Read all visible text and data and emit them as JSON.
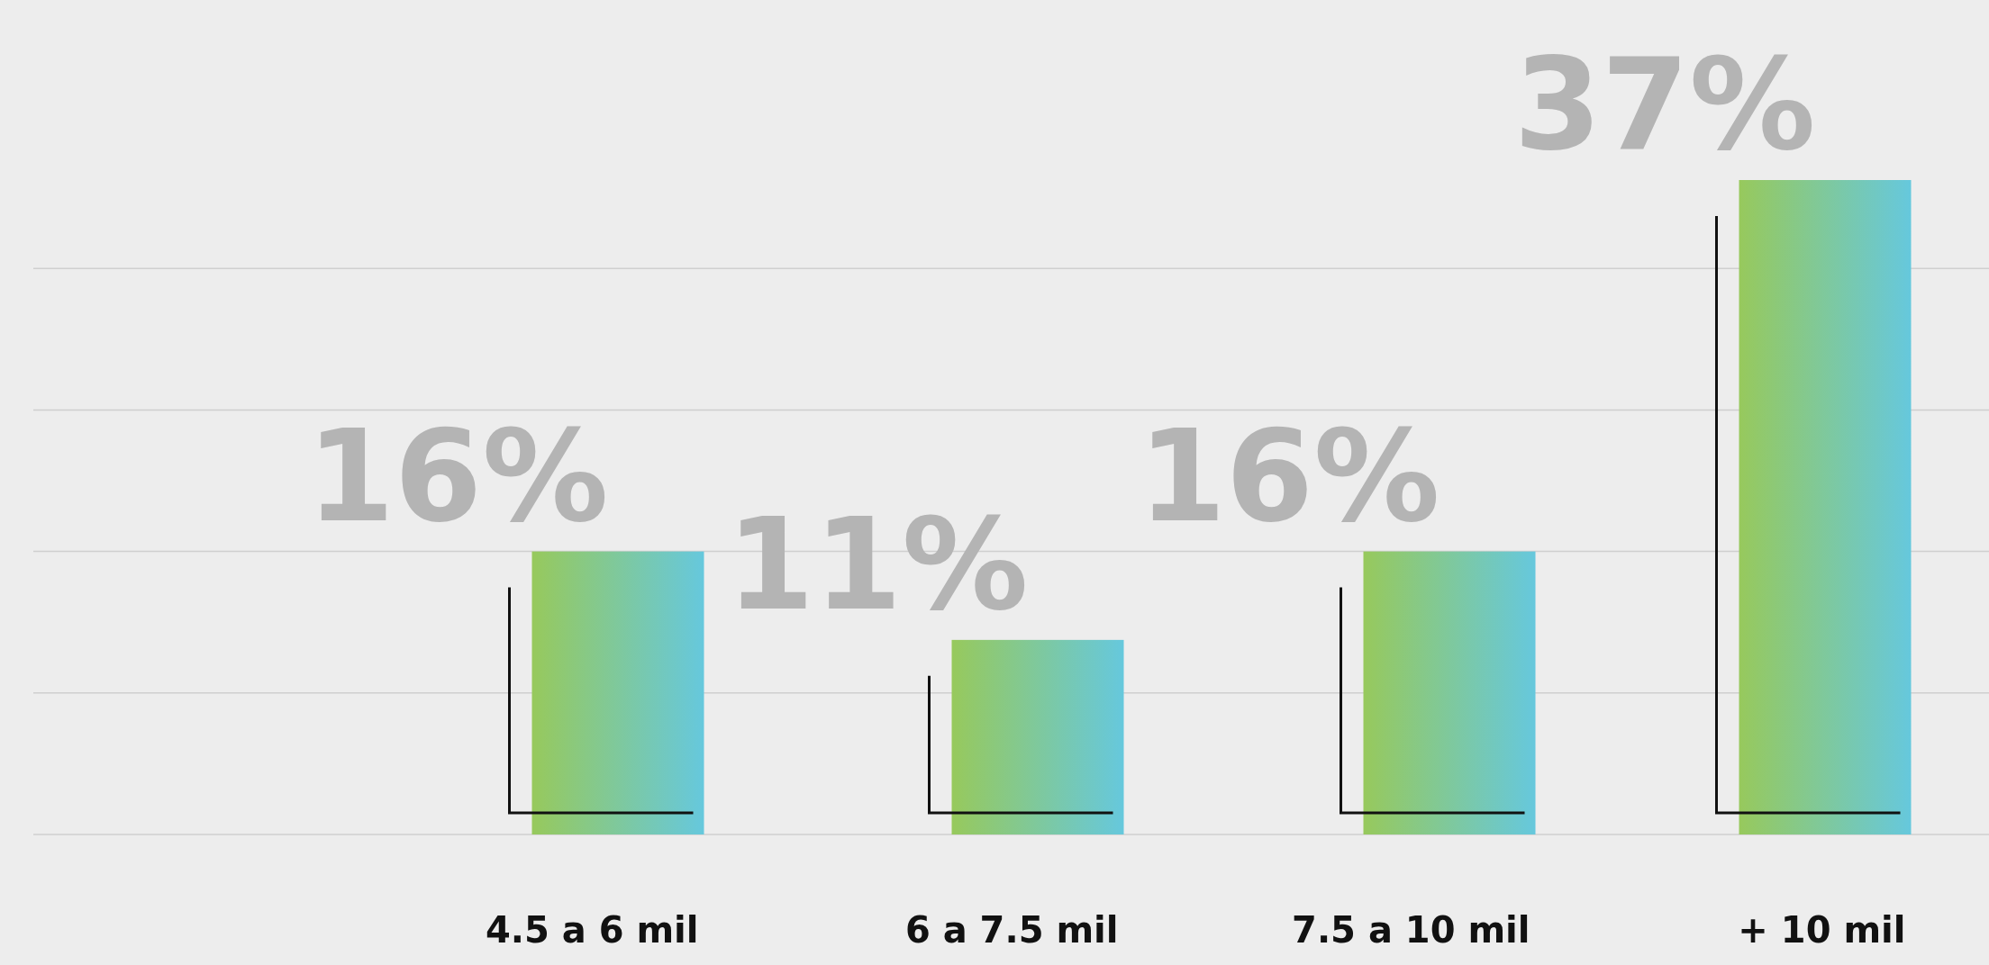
{
  "chart_data": {
    "type": "bar",
    "categories": [
      "4.5 a 6 mil",
      "6 a 7.5 mil",
      "7.5 a 10 mil",
      "+ 10 mil"
    ],
    "values": [
      16,
      11,
      16,
      37
    ],
    "value_labels": [
      "16%",
      "11%",
      "16%",
      "37%"
    ],
    "color": "#97c95c",
    "yticks": [
      {
        "value": 0,
        "label": null
      },
      {
        "value": 8,
        "label": null
      },
      {
        "value": 16,
        "label": null
      },
      {
        "value": 24,
        "label": null
      },
      {
        "value": 32,
        "label": null
      }
    ],
    "tick_labels": "x",
    "grid": "y"
  }
}
